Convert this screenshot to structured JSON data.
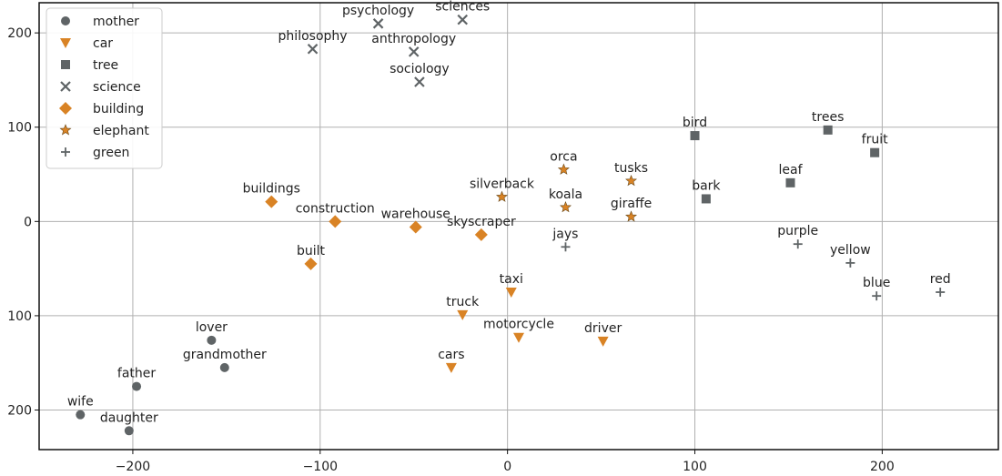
{
  "chart_data": {
    "type": "scatter",
    "title": "",
    "xlabel": "",
    "ylabel": "",
    "xlim": [
      -250,
      262
    ],
    "ylim": [
      -242,
      232
    ],
    "x_ticks": [
      -200,
      -100,
      0,
      100,
      200
    ],
    "y_ticks": [
      {
        "value": 200,
        "label": "200"
      },
      {
        "value": 100,
        "label": "100"
      },
      {
        "value": 0,
        "label": "0"
      },
      {
        "value": -100,
        "label": "100"
      },
      {
        "value": -200,
        "label": "200"
      }
    ],
    "grid": true,
    "legend_position": "top-left",
    "series": [
      {
        "name": "mother",
        "marker": "circle",
        "color": "#5f6466",
        "points": [
          {
            "label": "lover",
            "x": -158,
            "y": -126
          },
          {
            "label": "grandmother",
            "x": -151,
            "y": -155
          },
          {
            "label": "father",
            "x": -198,
            "y": -175
          },
          {
            "label": "wife",
            "x": -228,
            "y": -205
          },
          {
            "label": "daughter",
            "x": -202,
            "y": -222
          }
        ]
      },
      {
        "name": "car",
        "marker": "triangle-down",
        "color": "#d98325",
        "points": [
          {
            "label": "taxi",
            "x": 2,
            "y": -75
          },
          {
            "label": "truck",
            "x": -24,
            "y": -99
          },
          {
            "label": "motorcycle",
            "x": 6,
            "y": -123
          },
          {
            "label": "driver",
            "x": 51,
            "y": -127
          },
          {
            "label": "cars",
            "x": -30,
            "y": -155
          }
        ]
      },
      {
        "name": "tree",
        "marker": "square",
        "color": "#5f6466",
        "points": [
          {
            "label": "bird",
            "x": 100,
            "y": 91
          },
          {
            "label": "trees",
            "x": 171,
            "y": 97
          },
          {
            "label": "fruit",
            "x": 196,
            "y": 73
          },
          {
            "label": "leaf",
            "x": 151,
            "y": 41
          },
          {
            "label": "bark",
            "x": 106,
            "y": 24
          }
        ]
      },
      {
        "name": "science",
        "marker": "x",
        "color": "#5f6466",
        "points": [
          {
            "label": "psychology",
            "x": -69,
            "y": 210
          },
          {
            "label": "sciences",
            "x": -24,
            "y": 214
          },
          {
            "label": "philosophy",
            "x": -104,
            "y": 183
          },
          {
            "label": "anthropology",
            "x": -50,
            "y": 180
          },
          {
            "label": "sociology",
            "x": -47,
            "y": 148
          }
        ]
      },
      {
        "name": "building",
        "marker": "diamond",
        "color": "#d98325",
        "points": [
          {
            "label": "buildings",
            "x": -126,
            "y": 21
          },
          {
            "label": "construction",
            "x": -92,
            "y": 0
          },
          {
            "label": "warehouse",
            "x": -49,
            "y": -6
          },
          {
            "label": "skyscraper",
            "x": -14,
            "y": -14
          },
          {
            "label": "built",
            "x": -105,
            "y": -45
          }
        ]
      },
      {
        "name": "elephant",
        "marker": "star",
        "color": "#d98325",
        "points": [
          {
            "label": "orca",
            "x": 30,
            "y": 55
          },
          {
            "label": "tusks",
            "x": 66,
            "y": 43
          },
          {
            "label": "silverback",
            "x": -3,
            "y": 26
          },
          {
            "label": "koala",
            "x": 31,
            "y": 15
          },
          {
            "label": "giraffe",
            "x": 66,
            "y": 5
          }
        ]
      },
      {
        "name": "green",
        "marker": "plus",
        "color": "#5f6466",
        "points": [
          {
            "label": "jays",
            "x": 31,
            "y": -27
          },
          {
            "label": "purple",
            "x": 155,
            "y": -24
          },
          {
            "label": "yellow",
            "x": 183,
            "y": -44
          },
          {
            "label": "blue",
            "x": 197,
            "y": -79
          },
          {
            "label": "red",
            "x": 231,
            "y": -75
          }
        ]
      }
    ]
  }
}
